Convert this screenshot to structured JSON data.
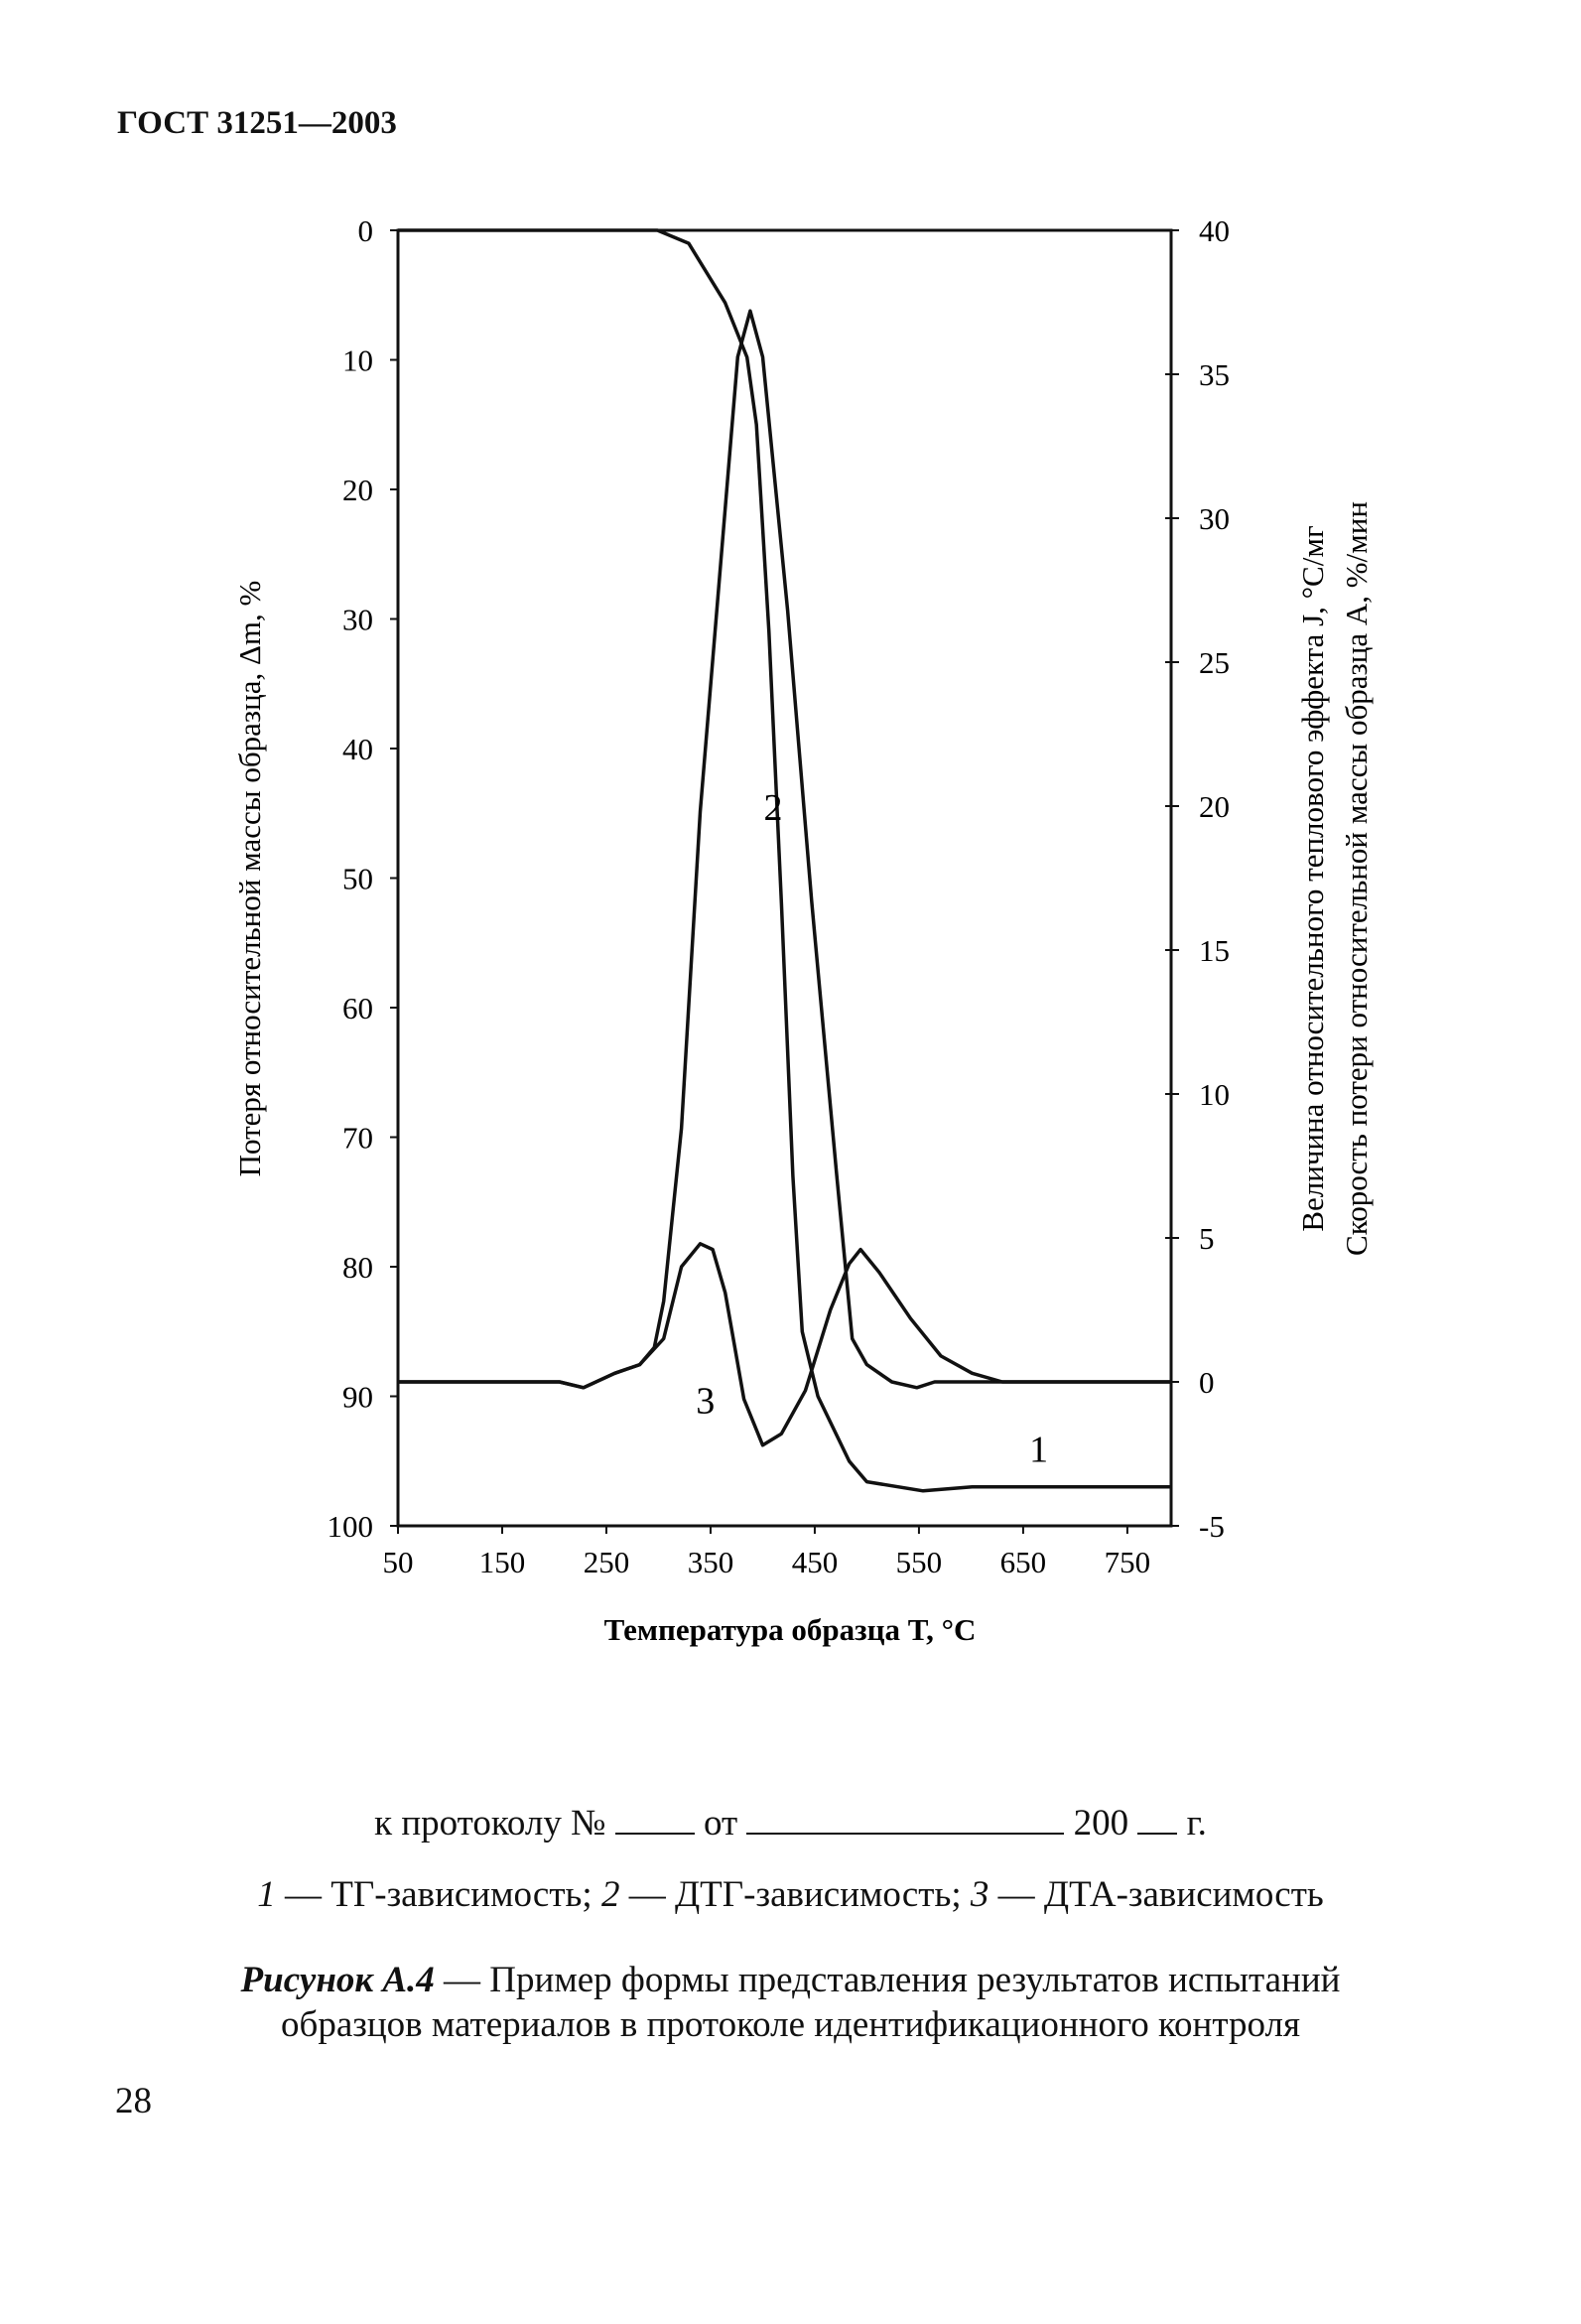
{
  "header": "ГОСТ 31251—2003",
  "protocol_line": {
    "prefix": "к протоколу №",
    "from": "от",
    "year": "200",
    "suffix": "г."
  },
  "legend_line": [
    {
      "num": "1",
      "text": " — ТГ-зависимость; "
    },
    {
      "num": "2",
      "text": " — ДТГ-зависимость; "
    },
    {
      "num": "3",
      "text": " — ДТА-зависимость"
    }
  ],
  "caption": {
    "label": "Рисунок А.4",
    "line1": " — Пример формы представления результатов испытаний",
    "line2": "образцов материалов в протоколе идентификационного контроля"
  },
  "page_number": "28",
  "chart_data": {
    "type": "line",
    "xlabel": "Температура образца T, °С",
    "ylabel_left": "Потеря относительной массы образца, Δm, %",
    "ylabel_right_1": "Величина относительного теплового эффекта J, °С/мг",
    "ylabel_right_2": "Скорость потери относительной массы образца А, %/мин",
    "xlim": [
      50,
      792
    ],
    "ylim_left": [
      0,
      100
    ],
    "ylim_left_inverted": true,
    "ylim_right": [
      -5,
      40
    ],
    "x_ticks": [
      "50",
      "150",
      "250",
      "350",
      "450",
      "550",
      "650",
      "750"
    ],
    "x_tick_values": [
      50,
      150,
      250,
      350,
      450,
      550,
      650,
      750
    ],
    "left_ticks": [
      "0",
      "10",
      "20",
      "30",
      "40",
      "50",
      "60",
      "70",
      "80",
      "90",
      "100"
    ],
    "right_ticks": [
      "40",
      "35",
      "30",
      "25",
      "20",
      "15",
      "10",
      "5",
      "0",
      "-5"
    ],
    "grid": false,
    "series": [
      {
        "name": "1",
        "label": "1",
        "axis": "left",
        "label_at": [
          665,
          94
        ],
        "x": [
          50,
          299,
          329,
          364,
          385,
          394,
          406,
          418,
          429,
          438,
          453,
          483,
          500,
          554,
          601,
          792
        ],
        "y": [
          0,
          0,
          1,
          5.6,
          9.8,
          15,
          31,
          52,
          73,
          85,
          90,
          95,
          96.6,
          97.3,
          97,
          97
        ]
      },
      {
        "name": "2",
        "label": "2",
        "axis": "right",
        "label_at": [
          410,
          20
        ],
        "x": [
          50,
          205,
          228,
          258,
          282,
          296,
          305,
          322,
          340,
          358,
          376,
          388,
          400,
          424,
          447,
          471,
          486,
          500,
          524,
          548,
          565,
          601,
          792
        ],
        "y": [
          0,
          0,
          -0.2,
          0.3,
          0.6,
          1.2,
          2.8,
          8.8,
          19.8,
          27.7,
          35.6,
          37.2,
          35.6,
          26.8,
          16.7,
          7.2,
          1.5,
          0.6,
          0,
          -0.2,
          0,
          0,
          0
        ]
      },
      {
        "name": "3",
        "label": "3",
        "axis": "right",
        "label_at": [
          345,
          -0.6
        ],
        "x": [
          50,
          205,
          228,
          258,
          282,
          305,
          322,
          340,
          352,
          364,
          382,
          400,
          418,
          441,
          465,
          483,
          494,
          512,
          542,
          571,
          601,
          630,
          792
        ],
        "y": [
          0,
          0,
          -0.2,
          0.3,
          0.6,
          1.5,
          4,
          4.8,
          4.6,
          3.1,
          -0.6,
          -2.2,
          -1.8,
          -0.3,
          2.5,
          4.1,
          4.6,
          3.8,
          2.2,
          0.9,
          0.3,
          0,
          0
        ]
      }
    ]
  }
}
